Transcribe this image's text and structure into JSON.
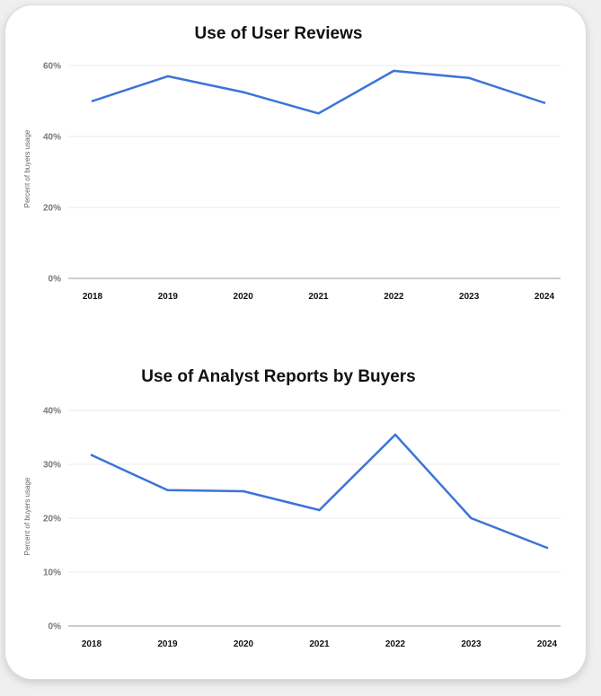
{
  "chart_data": [
    {
      "type": "line",
      "title": "Use of User Reviews",
      "ylabel": "Percent of buyers usage",
      "xlabel": "",
      "categories": [
        "2018",
        "2019",
        "2020",
        "2021",
        "2022",
        "2023",
        "2024"
      ],
      "series": [
        {
          "values": [
            50,
            57,
            52.5,
            46.5,
            58.5,
            56.5,
            49.5
          ]
        }
      ],
      "ylim": [
        0,
        60
      ],
      "yticks": [
        0,
        20,
        40,
        60
      ],
      "ytick_labels": [
        "0%",
        "20%",
        "40%",
        "60%"
      ],
      "grid": true,
      "line_color": "#3b74d9"
    },
    {
      "type": "line",
      "title": "Use of Analyst Reports by Buyers",
      "ylabel": "Percent of buyers usage",
      "xlabel": "",
      "categories": [
        "2018",
        "2019",
        "2020",
        "2021",
        "2022",
        "2023",
        "2024"
      ],
      "series": [
        {
          "values": [
            31.7,
            25.2,
            25,
            21.5,
            35.5,
            20,
            14.5
          ]
        }
      ],
      "ylim": [
        0,
        40
      ],
      "yticks": [
        0,
        10,
        20,
        30,
        40
      ],
      "ytick_labels": [
        "0%",
        "10%",
        "20%",
        "30%",
        "40%"
      ],
      "grid": true,
      "line_color": "#3b74d9"
    }
  ]
}
